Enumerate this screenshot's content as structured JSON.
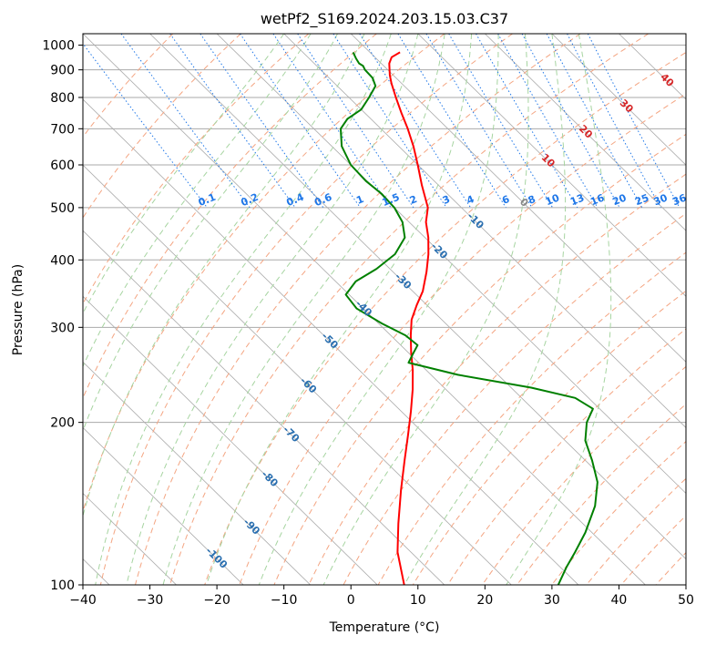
{
  "chart_data": {
    "type": "line",
    "subtype": "skew-t log-p diagram",
    "title": "wetPf2_S169.2024.203.15.03.C37",
    "xlabel": "Temperature (°C)",
    "ylabel": "Pressure (hPa)",
    "xlim": [
      -40,
      50
    ],
    "ylim": [
      1050,
      100
    ],
    "y_scale": "log",
    "grid": true,
    "x_ticks": [
      -40,
      -30,
      -20,
      -10,
      0,
      10,
      20,
      30,
      40,
      50
    ],
    "y_ticks": [
      100,
      200,
      300,
      400,
      500,
      600,
      700,
      800,
      900,
      1000
    ],
    "colors": {
      "temperature": "#ff0000",
      "dewpoint": "#008000",
      "dry_adiabat": "#f4a582",
      "moist_adiabat": "#a6d4a0",
      "mixing_ratio": "#1f77e8",
      "isotherm": "#999999",
      "grid": "#aaaaaa"
    },
    "series": [
      {
        "name": "Temperature",
        "points": [
          {
            "p": 970,
            "t": 4.5
          },
          {
            "p": 950,
            "t": 2.5
          },
          {
            "p": 925,
            "t": 1.2
          },
          {
            "p": 880,
            "t": -0.5
          },
          {
            "p": 850,
            "t": -1.5
          },
          {
            "p": 800,
            "t": -3.0
          },
          {
            "p": 750,
            "t": -4.5
          },
          {
            "p": 700,
            "t": -6.0
          },
          {
            "p": 650,
            "t": -7.8
          },
          {
            "p": 600,
            "t": -10.0
          },
          {
            "p": 550,
            "t": -12.5
          },
          {
            "p": 500,
            "t": -15.0
          },
          {
            "p": 470,
            "t": -17.5
          },
          {
            "p": 440,
            "t": -19.5
          },
          {
            "p": 410,
            "t": -22.0
          },
          {
            "p": 380,
            "t": -25.0
          },
          {
            "p": 350,
            "t": -28.5
          },
          {
            "p": 330,
            "t": -31.5
          },
          {
            "p": 310,
            "t": -34.5
          },
          {
            "p": 290,
            "t": -37.0
          },
          {
            "p": 270,
            "t": -39.5
          },
          {
            "p": 250,
            "t": -42.0
          },
          {
            "p": 230,
            "t": -45.0
          },
          {
            "p": 210,
            "t": -48.5
          },
          {
            "p": 190,
            "t": -52.5
          },
          {
            "p": 170,
            "t": -57.0
          },
          {
            "p": 150,
            "t": -62.0
          },
          {
            "p": 130,
            "t": -67.5
          },
          {
            "p": 115,
            "t": -72.0
          },
          {
            "p": 100,
            "t": -76.0
          }
        ]
      },
      {
        "name": "Dewpoint",
        "points": [
          {
            "p": 970,
            "t": -2.5
          },
          {
            "p": 945,
            "t": -3.0
          },
          {
            "p": 925,
            "t": -3.3
          },
          {
            "p": 915,
            "t": -3.1
          },
          {
            "p": 900,
            "t": -3.4
          },
          {
            "p": 870,
            "t": -3.5
          },
          {
            "p": 840,
            "t": -4.3
          },
          {
            "p": 800,
            "t": -7.0
          },
          {
            "p": 760,
            "t": -10.0
          },
          {
            "p": 730,
            "t": -13.5
          },
          {
            "p": 700,
            "t": -16.0
          },
          {
            "p": 650,
            "t": -18.5
          },
          {
            "p": 600,
            "t": -20.0
          },
          {
            "p": 560,
            "t": -20.2
          },
          {
            "p": 530,
            "t": -19.8
          },
          {
            "p": 500,
            "t": -20.0
          },
          {
            "p": 470,
            "t": -21.0
          },
          {
            "p": 440,
            "t": -23.0
          },
          {
            "p": 410,
            "t": -27.0
          },
          {
            "p": 385,
            "t": -32.0
          },
          {
            "p": 365,
            "t": -37.0
          },
          {
            "p": 345,
            "t": -40.5
          },
          {
            "p": 325,
            "t": -41.0
          },
          {
            "p": 305,
            "t": -39.5
          },
          {
            "p": 290,
            "t": -37.8
          },
          {
            "p": 278,
            "t": -37.5
          },
          {
            "p": 268,
            "t": -39.5
          },
          {
            "p": 258,
            "t": -41.5
          },
          {
            "p": 245,
            "t": -36.0
          },
          {
            "p": 232,
            "t": -27.0
          },
          {
            "p": 222,
            "t": -22.0
          },
          {
            "p": 212,
            "t": -21.0
          },
          {
            "p": 200,
            "t": -24.0
          },
          {
            "p": 185,
            "t": -27.0
          },
          {
            "p": 170,
            "t": -29.0
          },
          {
            "p": 155,
            "t": -31.5
          },
          {
            "p": 140,
            "t": -35.5
          },
          {
            "p": 125,
            "t": -41.0
          },
          {
            "p": 115,
            "t": -45.5
          },
          {
            "p": 108,
            "t": -49.0
          },
          {
            "p": 100,
            "t": -53.0
          }
        ]
      }
    ],
    "isotherm_labels": [
      {
        "text": "0",
        "t": 0,
        "p": 510,
        "color": "#888888"
      },
      {
        "text": "10",
        "t": 10,
        "p": 610,
        "color": "#d62728"
      },
      {
        "text": "20",
        "t": 20,
        "p": 690,
        "color": "#d62728"
      },
      {
        "text": "30",
        "t": 30,
        "p": 770,
        "color": "#d62728"
      },
      {
        "text": "40",
        "t": 40,
        "p": 860,
        "color": "#d62728"
      }
    ],
    "moist_adiabat_labels": [
      {
        "text": "-100",
        "t": -100,
        "p": 112
      },
      {
        "text": "-90",
        "t": -90,
        "p": 128
      },
      {
        "text": "-80",
        "t": -80,
        "p": 157
      },
      {
        "text": "-70",
        "t": -70,
        "p": 190
      },
      {
        "text": "-60",
        "t": -60,
        "p": 234
      },
      {
        "text": "-50",
        "t": -50,
        "p": 283
      },
      {
        "text": "-40",
        "t": -40,
        "p": 325
      },
      {
        "text": "-30",
        "t": -30,
        "p": 365
      },
      {
        "text": "-20",
        "t": -20,
        "p": 415
      },
      {
        "text": "-10",
        "t": -10,
        "p": 472
      }
    ],
    "mixing_ratio_labels": [
      "0.1",
      "0.2",
      "0.4",
      "0.6",
      "1",
      "1.5",
      "2",
      "3",
      "4",
      "6",
      "8",
      "10",
      "13",
      "16",
      "20",
      "25",
      "30",
      "36"
    ]
  }
}
